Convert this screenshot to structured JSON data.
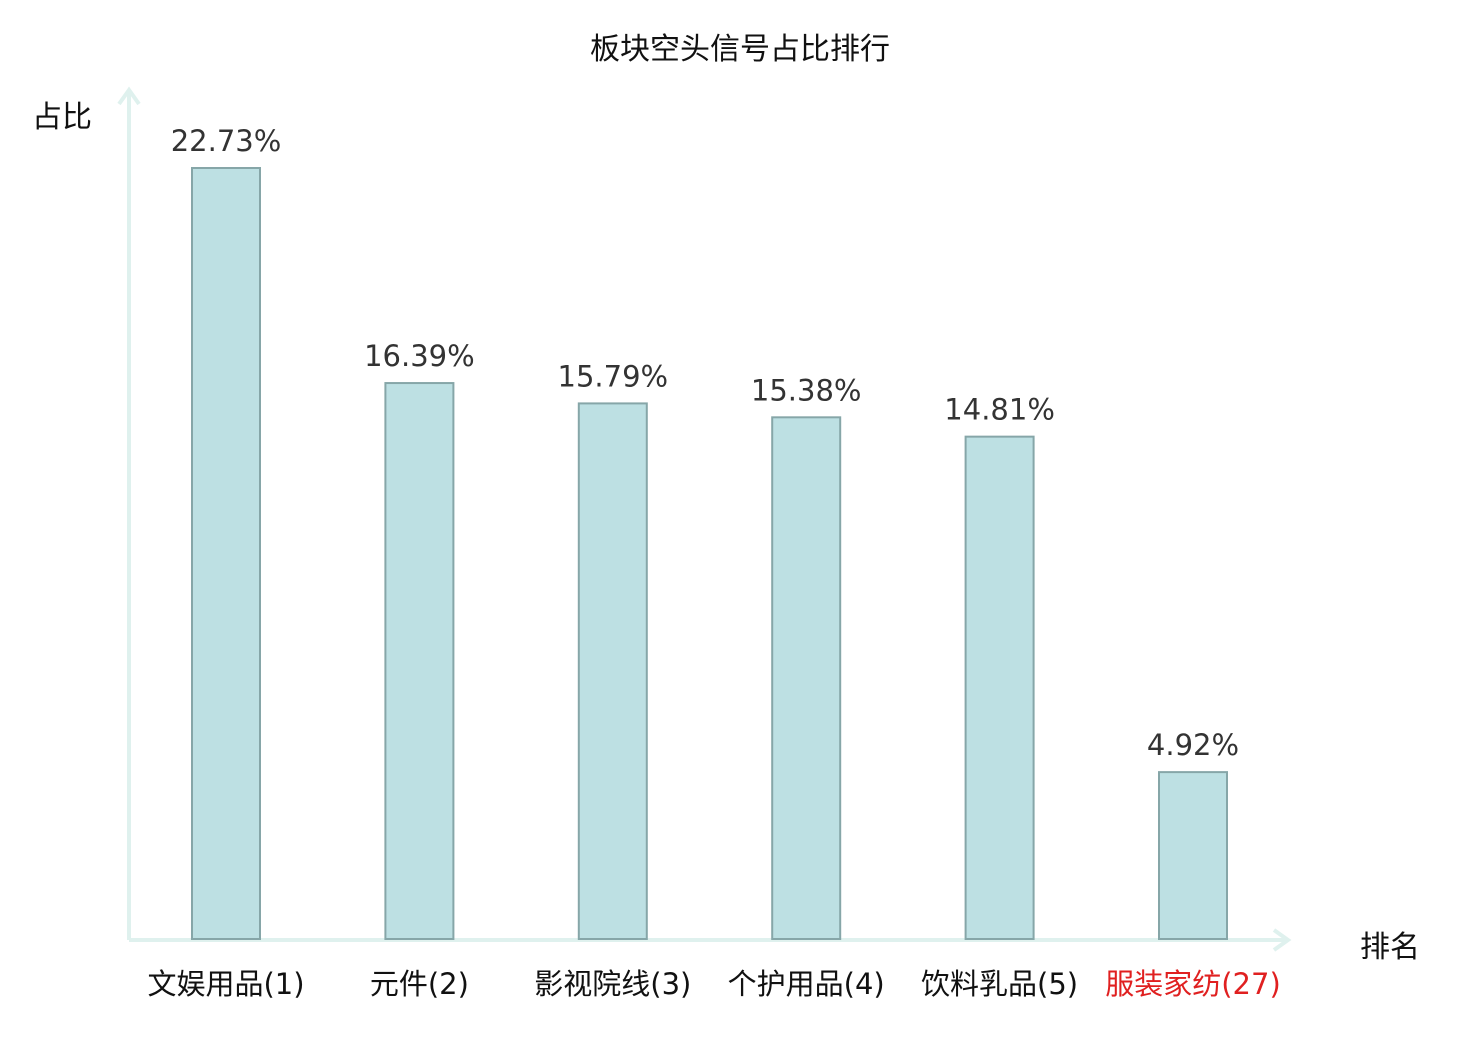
{
  "chart_data": {
    "type": "bar",
    "title": "板块空头信号占比排行",
    "xlabel": "排名",
    "ylabel": "占比",
    "categories": [
      "文娱用品(1)",
      "元件(2)",
      "影视院线(3)",
      "个护用品(4)",
      "饮料乳品(5)",
      "服装家纺(27)"
    ],
    "values": [
      22.73,
      16.39,
      15.79,
      15.38,
      14.81,
      4.92
    ],
    "value_labels": [
      "22.73%",
      "16.39%",
      "15.79%",
      "15.38%",
      "14.81%",
      "4.92%"
    ],
    "highlight_category": "服装家纺(27)",
    "ylim": [
      0,
      25
    ],
    "grid": false,
    "colors": {
      "bar_fill": "#bde0e3",
      "bar_stroke": "#86a6a8",
      "axis": "#dff1ee",
      "label_text": "#111111",
      "value_text": "#333333",
      "highlight_text": "#e02020"
    }
  }
}
